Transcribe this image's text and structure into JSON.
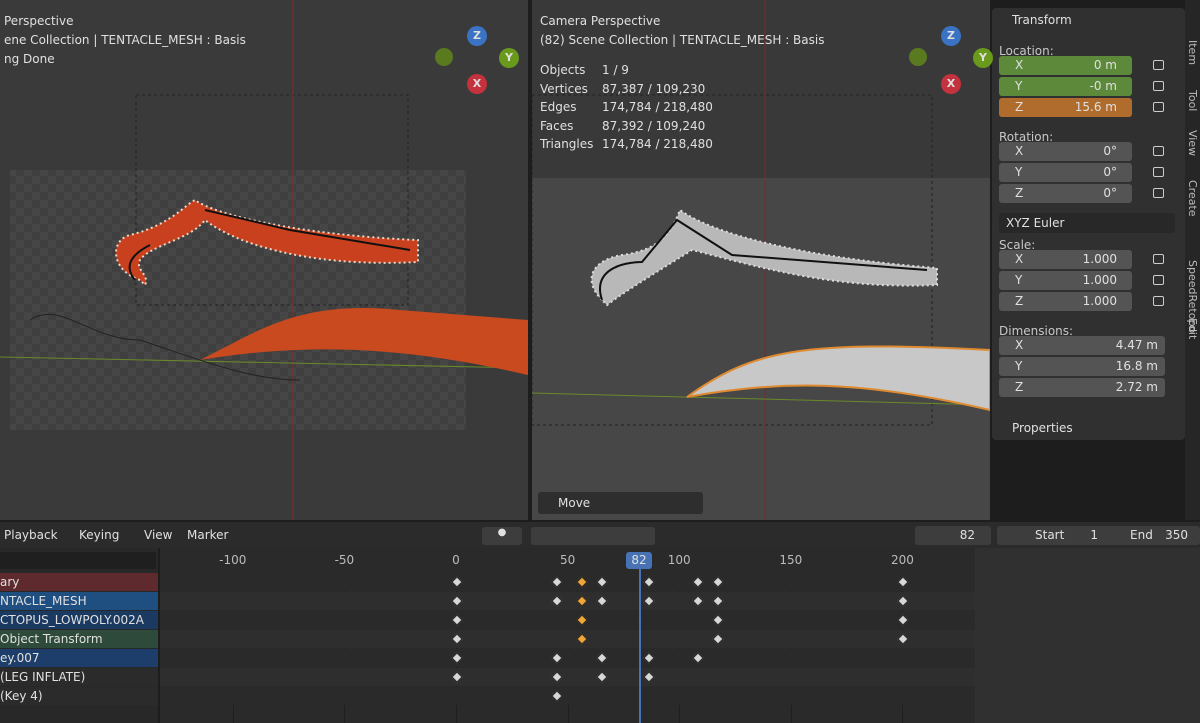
{
  "left_viewport": {
    "lines": [
      "Perspective",
      "ene Collection | TENTACLE_MESH : Basis",
      "ng Done"
    ]
  },
  "right_viewport": {
    "lines": [
      "Camera Perspective",
      "(82) Scene Collection | TENTACLE_MESH : Basis"
    ],
    "stats": [
      [
        "Objects",
        "1 / 9"
      ],
      [
        "Vertices",
        "87,387 / 109,230"
      ],
      [
        "Edges",
        "174,784 / 218,480"
      ],
      [
        "Faces",
        "87,392 / 109,240"
      ],
      [
        "Triangles",
        "174,784 / 218,480"
      ]
    ],
    "operator": "Move"
  },
  "gizmo": {
    "z": "Z",
    "y": "Y",
    "x": "X"
  },
  "panel": {
    "title": "Transform",
    "location": {
      "label": "Location:",
      "rows": [
        [
          "X",
          "0 m"
        ],
        [
          "Y",
          "-0 m"
        ],
        [
          "Z",
          "15.6 m"
        ]
      ]
    },
    "rotation": {
      "label": "Rotation:",
      "rows": [
        [
          "X",
          "0°"
        ],
        [
          "Y",
          "0°"
        ],
        [
          "Z",
          "0°"
        ]
      ]
    },
    "mode": "XYZ Euler",
    "scale": {
      "label": "Scale:",
      "rows": [
        [
          "X",
          "1.000"
        ],
        [
          "Y",
          "1.000"
        ],
        [
          "Z",
          "1.000"
        ]
      ]
    },
    "dimensions": {
      "label": "Dimensions:",
      "rows": [
        [
          "X",
          "4.47 m"
        ],
        [
          "Y",
          "16.8 m"
        ],
        [
          "Z",
          "2.72 m"
        ]
      ]
    },
    "properties": "Properties"
  },
  "tabs": [
    "Item",
    "Tool",
    "View",
    "Create",
    "SpeedRetopo",
    "Edit"
  ],
  "timeline": {
    "menus": [
      "Playback",
      "Keying",
      "View",
      "Marker"
    ],
    "current_frame": 82,
    "start_label": "Start",
    "start": 1,
    "end_label": "End",
    "end": 350
  },
  "dopesheet": {
    "ruler": [
      -100,
      -50,
      0,
      50,
      100,
      150,
      200
    ],
    "selected_frames": [
      56
    ],
    "key_color": "#d8d8d8",
    "selected_key_color": "#f0a73a",
    "channels": [
      {
        "name": "ary",
        "color": "#5e2a2e",
        "keys": [
          0,
          45,
          56,
          65,
          86,
          108,
          117,
          200
        ]
      },
      {
        "name": "NTACLE_MESH",
        "color": "#1f4e80",
        "keys": [
          0,
          45,
          56,
          65,
          86,
          108,
          117,
          200
        ]
      },
      {
        "name": "CTOPUS_LOWPOLY.002A",
        "color": "#1a3a62",
        "keys": [
          0,
          56,
          117,
          200
        ]
      },
      {
        "name": "Object Transform",
        "color": "#2d4a3a",
        "keys": [
          0,
          56,
          117,
          200
        ]
      },
      {
        "name": "ey.007",
        "color": "#1d3d6a",
        "keys": [
          0,
          45,
          65,
          86,
          108
        ]
      },
      {
        "name": "(LEG INFLATE)",
        "color": "#2b2b2b",
        "keys": [
          0,
          45,
          65,
          86
        ]
      },
      {
        "name": "(Key 4)",
        "color": "#2b2b2b",
        "keys": [
          45
        ]
      }
    ]
  }
}
